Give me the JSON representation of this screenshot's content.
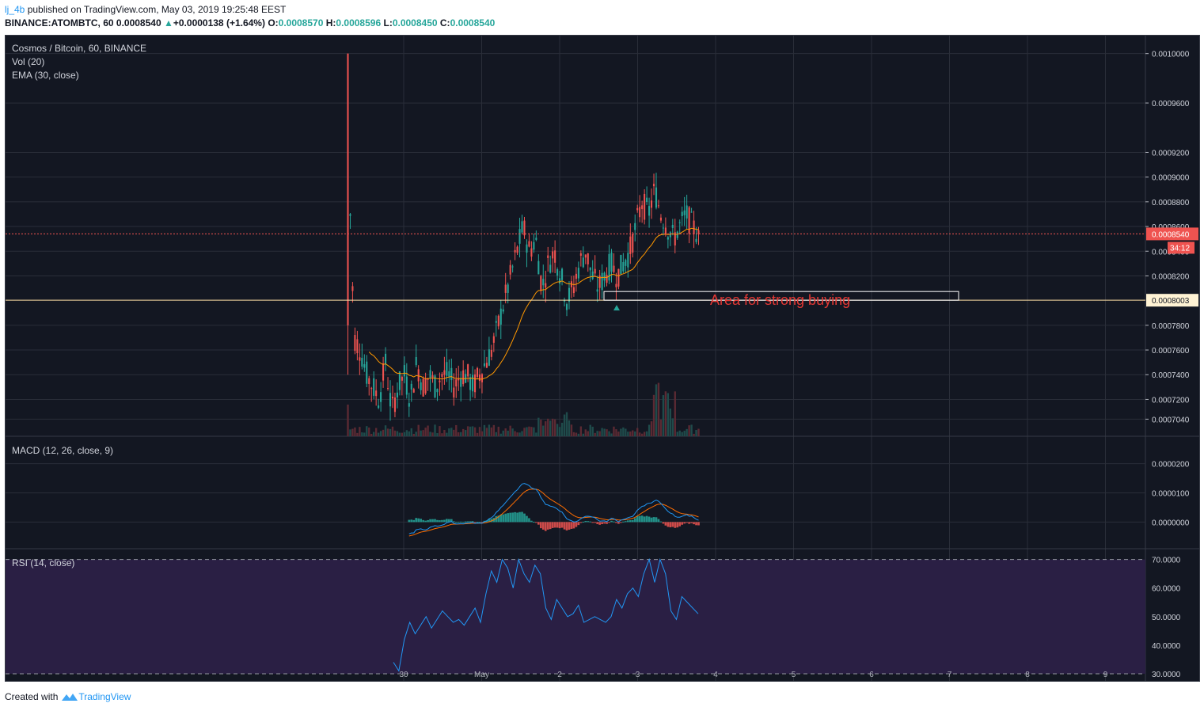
{
  "header": {
    "user": "lj_4b",
    "published_text": "published on TradingView.com, May 03, 2019 19:25:48 EEST",
    "symbol_line": "BINANCE:ATOMBTC, 60",
    "last": "0.0008540",
    "change": "+0.0000138 (+1.64%)",
    "o_label": "O:",
    "o_value": "0.0008570",
    "h_label": "H:",
    "h_value": "0.0008596",
    "l_label": "L:",
    "l_value": "0.0008450",
    "c_label": "C:",
    "c_value": "0.0008540"
  },
  "legend": {
    "title": "Cosmos / Bitcoin, 60, BINANCE",
    "vol": "Vol (20)",
    "ema": "EMA (30, close)",
    "macd": "MACD (12, 26, close, 9)",
    "rsi": "RSI (14, close)"
  },
  "annotation": {
    "text": "Area for strong buying",
    "level_label": "0.0008003",
    "price_label": "0.0008540",
    "countdown": "34:12"
  },
  "footer": {
    "created_with": "Created with",
    "brand": "TradingView"
  },
  "colors": {
    "background": "#131722",
    "up": "#26a69a",
    "down": "#ef5350",
    "ema": "#ff9800",
    "macd_line": "#2196f3",
    "signal_line": "#ff6d00",
    "rsi_line": "#2196f3",
    "rsi_band": "#2a1f44",
    "level_line": "#ffe0a6",
    "annotation": "#e53935"
  },
  "chart_data": [
    {
      "type": "candlestick",
      "title": "Cosmos / Bitcoin, 60, BINANCE",
      "x_ticks": [
        "30",
        "May",
        "2",
        "3",
        "4",
        "5",
        "6",
        "7",
        "8",
        "9"
      ],
      "y_ticks": [
        "0.0010000",
        "0.0009600",
        "0.0009200",
        "0.0009000",
        "0.0008800",
        "0.0008600",
        "0.0008400",
        "0.0008200",
        "0.0007800",
        "0.0007600",
        "0.0007400",
        "0.0007200",
        "0.0007040"
      ],
      "ylim": [
        0.000694,
        0.001003
      ],
      "horizontal_level": 0.0008003,
      "last_price": 0.000854,
      "close_approx": [
        0.00093,
        0.00077,
        0.00076,
        0.00074,
        0.00073,
        0.00072,
        0.00075,
        0.00071,
        0.00073,
        0.00074,
        0.00072,
        0.00075,
        0.00073,
        0.00074,
        0.00073,
        0.00074,
        0.00074,
        0.00073,
        0.00074,
        0.00074,
        0.00073,
        0.00074,
        0.00075,
        0.00076,
        0.00078,
        0.0008,
        0.00082,
        0.00084,
        0.00086,
        0.00084,
        0.00085,
        0.00081,
        0.00083,
        0.00084,
        0.00082,
        0.0008,
        0.00081,
        0.00083,
        0.00084,
        0.00082,
        0.00081,
        0.00082,
        0.00083,
        0.00082,
        0.00083,
        0.00084,
        0.00086,
        0.00088,
        0.00087,
        0.00089,
        0.00087,
        0.00086,
        0.00085,
        0.00086,
        0.00087,
        0.00086,
        0.000854
      ]
    },
    {
      "type": "line",
      "title": "MACD (12, 26, close, 9)",
      "y_ticks": [
        "0.0000200",
        "0.0000100",
        "0.0000000"
      ],
      "ylim": [
        -7.5e-06,
        2.75e-05
      ]
    },
    {
      "type": "line",
      "title": "RSI (14, close)",
      "y_ticks": [
        "70.0000",
        "60.0000",
        "50.0000",
        "40.0000",
        "30.0000"
      ],
      "ylim": [
        27.5,
        73.5
      ],
      "band": [
        30,
        70
      ],
      "values": [
        34,
        31,
        42,
        48,
        44,
        47,
        50,
        46,
        49,
        52,
        50,
        48,
        49,
        47,
        50,
        53,
        48,
        58,
        66,
        62,
        70,
        67,
        60,
        70,
        65,
        62,
        68,
        65,
        53,
        49,
        56,
        53,
        50,
        51,
        54,
        48,
        49,
        50,
        49,
        48,
        50,
        56,
        53,
        58,
        60,
        57,
        65,
        70,
        62,
        70,
        65,
        52,
        49,
        57,
        55,
        53,
        51
      ]
    }
  ]
}
